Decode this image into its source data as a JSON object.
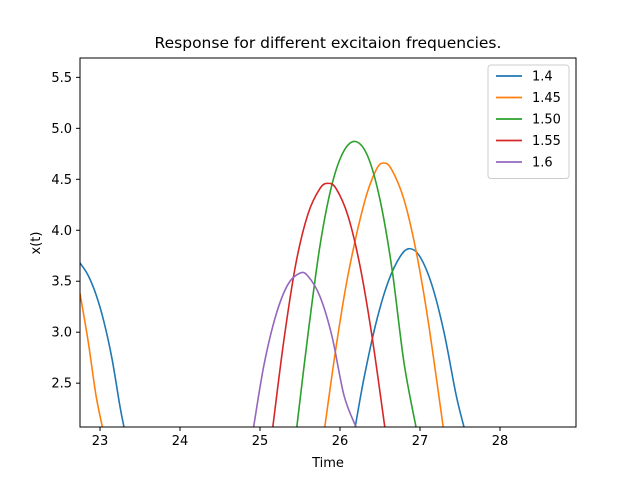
{
  "chart_data": {
    "type": "line",
    "title": "Response for different excitaion frequencies.",
    "xlabel": "Time",
    "ylabel": "x(t)",
    "xlim": [
      22.75,
      28.95
    ],
    "ylim": [
      2.07,
      5.69
    ],
    "xticks": [
      23,
      24,
      25,
      26,
      27,
      28
    ],
    "xtick_labels": [
      "23",
      "24",
      "25",
      "26",
      "27",
      "28"
    ],
    "yticks": [
      2.5,
      3.0,
      3.5,
      4.0,
      4.5,
      5.0,
      5.5
    ],
    "ytick_labels": [
      "2.5",
      "3.0",
      "3.5",
      "4.0",
      "4.5",
      "5.0",
      "5.5"
    ],
    "grid": false,
    "legend_position": "top-right",
    "series": [
      {
        "name": "1.4",
        "color": "#1f77b4",
        "arcs": [
          {
            "x": [
              22.75,
              22.85,
              22.95,
              23.05,
              23.15,
              23.25,
              23.3
            ],
            "y": [
              3.68,
              3.56,
              3.37,
              3.1,
              2.74,
              2.27,
              2.07
            ]
          },
          {
            "x": [
              26.19,
              26.3,
              26.45,
              26.6,
              26.75,
              26.87,
              27.0,
              27.15,
              27.3,
              27.45,
              27.55
            ],
            "y": [
              2.07,
              2.55,
              3.09,
              3.49,
              3.74,
              3.82,
              3.74,
              3.46,
              3.0,
              2.39,
              2.07
            ]
          }
        ]
      },
      {
        "name": "1.45",
        "color": "#ff7f0e",
        "arcs": [
          {
            "x": [
              22.75,
              22.85,
              22.95,
              23.03
            ],
            "y": [
              3.38,
              2.92,
              2.38,
              2.07
            ]
          },
          {
            "x": [
              25.81,
              25.95,
              26.1,
              26.3,
              26.45,
              26.55,
              26.65,
              26.8,
              26.95,
              27.1,
              27.29
            ],
            "y": [
              2.07,
              2.85,
              3.56,
              4.26,
              4.59,
              4.66,
              4.59,
              4.3,
              3.8,
              3.12,
              2.07
            ]
          }
        ]
      },
      {
        "name": "1.50",
        "color": "#2ca02c",
        "arcs": [
          {
            "x": [
              25.46,
              25.6,
              25.75,
              25.9,
              26.05,
              26.2,
              26.35,
              26.5,
              26.65,
              26.8,
              26.95
            ],
            "y": [
              2.07,
              2.98,
              3.85,
              4.45,
              4.78,
              4.87,
              4.72,
              4.3,
              3.62,
              2.7,
              2.07
            ]
          }
        ]
      },
      {
        "name": "1.55",
        "color": "#d62728",
        "arcs": [
          {
            "x": [
              25.16,
              25.3,
              25.45,
              25.6,
              25.75,
              25.85,
              25.95,
              26.1,
              26.25,
              26.4,
              26.56
            ],
            "y": [
              2.07,
              2.93,
              3.68,
              4.16,
              4.41,
              4.46,
              4.41,
              4.14,
              3.65,
              2.96,
              2.07
            ]
          }
        ]
      },
      {
        "name": "1.6",
        "color": "#9467bd",
        "arcs": [
          {
            "x": [
              24.92,
              25.05,
              25.2,
              25.35,
              25.5,
              25.6,
              25.75,
              25.9,
              26.05,
              26.2
            ],
            "y": [
              2.07,
              2.68,
              3.17,
              3.47,
              3.58,
              3.55,
              3.35,
              2.96,
              2.38,
              2.07
            ]
          }
        ]
      }
    ]
  }
}
